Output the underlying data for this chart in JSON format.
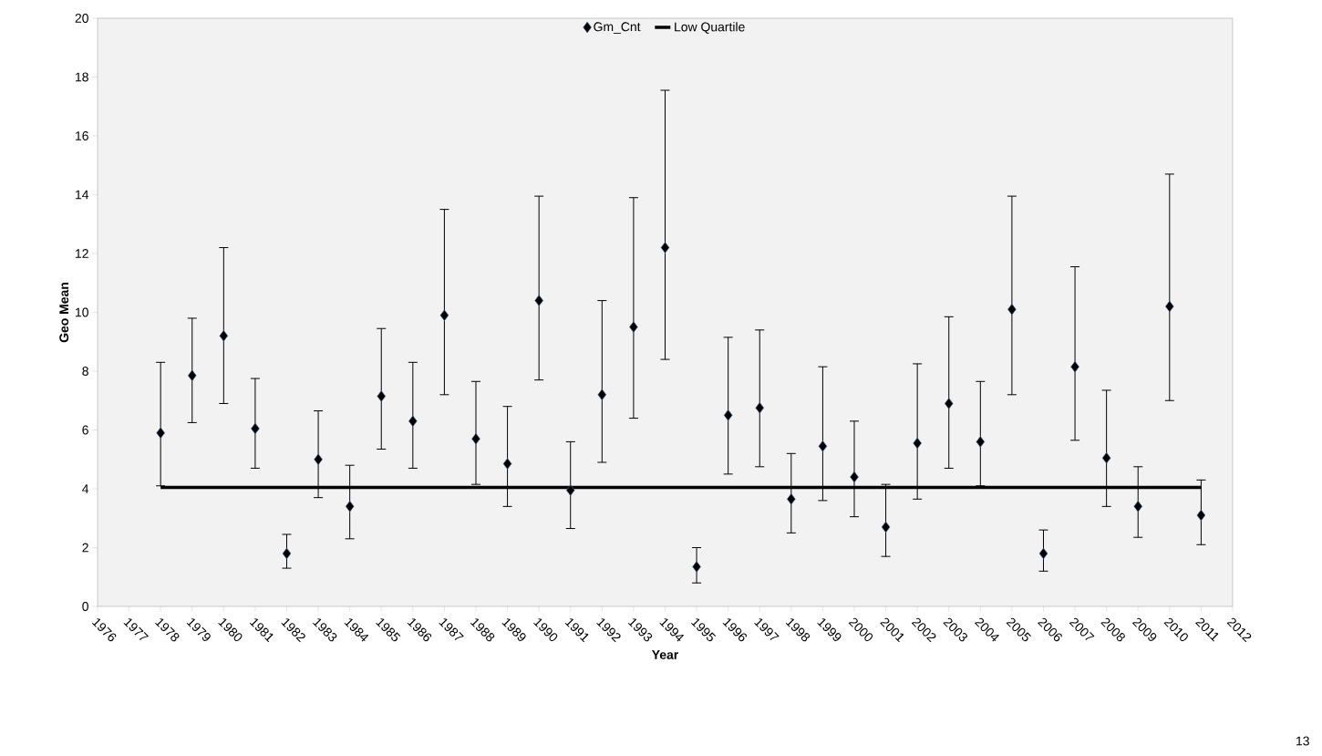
{
  "chart_data": {
    "type": "scatter",
    "xlabel": "Year",
    "ylabel": "Geo Mean",
    "xlim": [
      1976,
      2012
    ],
    "ylim": [
      0,
      20
    ],
    "xticks": [
      1976,
      1977,
      1978,
      1979,
      1980,
      1981,
      1982,
      1983,
      1984,
      1985,
      1986,
      1987,
      1988,
      1989,
      1990,
      1991,
      1992,
      1993,
      1994,
      1995,
      1996,
      1997,
      1998,
      1999,
      2000,
      2001,
      2002,
      2003,
      2004,
      2005,
      2006,
      2007,
      2008,
      2009,
      2010,
      2011,
      2012
    ],
    "yticks": [
      0,
      2,
      4,
      6,
      8,
      10,
      12,
      14,
      16,
      18,
      20
    ],
    "marker": "diamond",
    "legend": "top",
    "annotations": [
      "13"
    ],
    "series": [
      {
        "name": "Gm_Cnt",
        "color": "#000000",
        "x": [
          1978,
          1979,
          1980,
          1981,
          1982,
          1983,
          1984,
          1985,
          1986,
          1987,
          1988,
          1989,
          1990,
          1991,
          1992,
          1993,
          1994,
          1995,
          1996,
          1997,
          1998,
          1999,
          2000,
          2001,
          2002,
          2003,
          2004,
          2005,
          2006,
          2007,
          2008,
          2009,
          2010,
          2011
        ],
        "values": [
          5.9,
          7.85,
          9.2,
          6.05,
          1.8,
          5.0,
          3.4,
          7.15,
          6.3,
          9.9,
          5.7,
          4.85,
          10.4,
          3.95,
          7.2,
          9.5,
          12.2,
          1.35,
          6.5,
          6.75,
          3.65,
          5.45,
          4.4,
          2.7,
          5.55,
          6.9,
          5.6,
          10.1,
          1.8,
          8.15,
          5.05,
          3.4,
          10.2,
          3.1
        ],
        "errors": [
          [
            4.1,
            8.3
          ],
          [
            6.25,
            9.8
          ],
          [
            6.9,
            12.2
          ],
          [
            4.7,
            7.75
          ],
          [
            1.3,
            2.45
          ],
          [
            3.7,
            6.65
          ],
          [
            2.3,
            4.8
          ],
          [
            5.35,
            9.45
          ],
          [
            4.7,
            8.3
          ],
          [
            7.2,
            13.5
          ],
          [
            4.15,
            7.65
          ],
          [
            3.4,
            6.8
          ],
          [
            7.7,
            13.95
          ],
          [
            2.65,
            5.6
          ],
          [
            4.9,
            10.4
          ],
          [
            6.4,
            13.9
          ],
          [
            8.4,
            17.55
          ],
          [
            0.8,
            2.0
          ],
          [
            4.5,
            9.15
          ],
          [
            4.75,
            9.4
          ],
          [
            2.5,
            5.2
          ],
          [
            3.6,
            8.15
          ],
          [
            3.05,
            6.3
          ],
          [
            1.7,
            4.15
          ],
          [
            3.65,
            8.25
          ],
          [
            4.7,
            9.85
          ],
          [
            4.1,
            7.65
          ],
          [
            7.2,
            13.95
          ],
          [
            1.2,
            2.6
          ],
          [
            5.65,
            11.55
          ],
          [
            3.4,
            7.35
          ],
          [
            2.35,
            4.75
          ],
          [
            7.0,
            14.7
          ],
          [
            2.1,
            4.3
          ]
        ]
      },
      {
        "name": "Low Quartile",
        "type": "line",
        "marker": "none",
        "color": "#000000",
        "x": [
          1978,
          2011
        ],
        "values": [
          4.05,
          4.05
        ]
      }
    ]
  }
}
